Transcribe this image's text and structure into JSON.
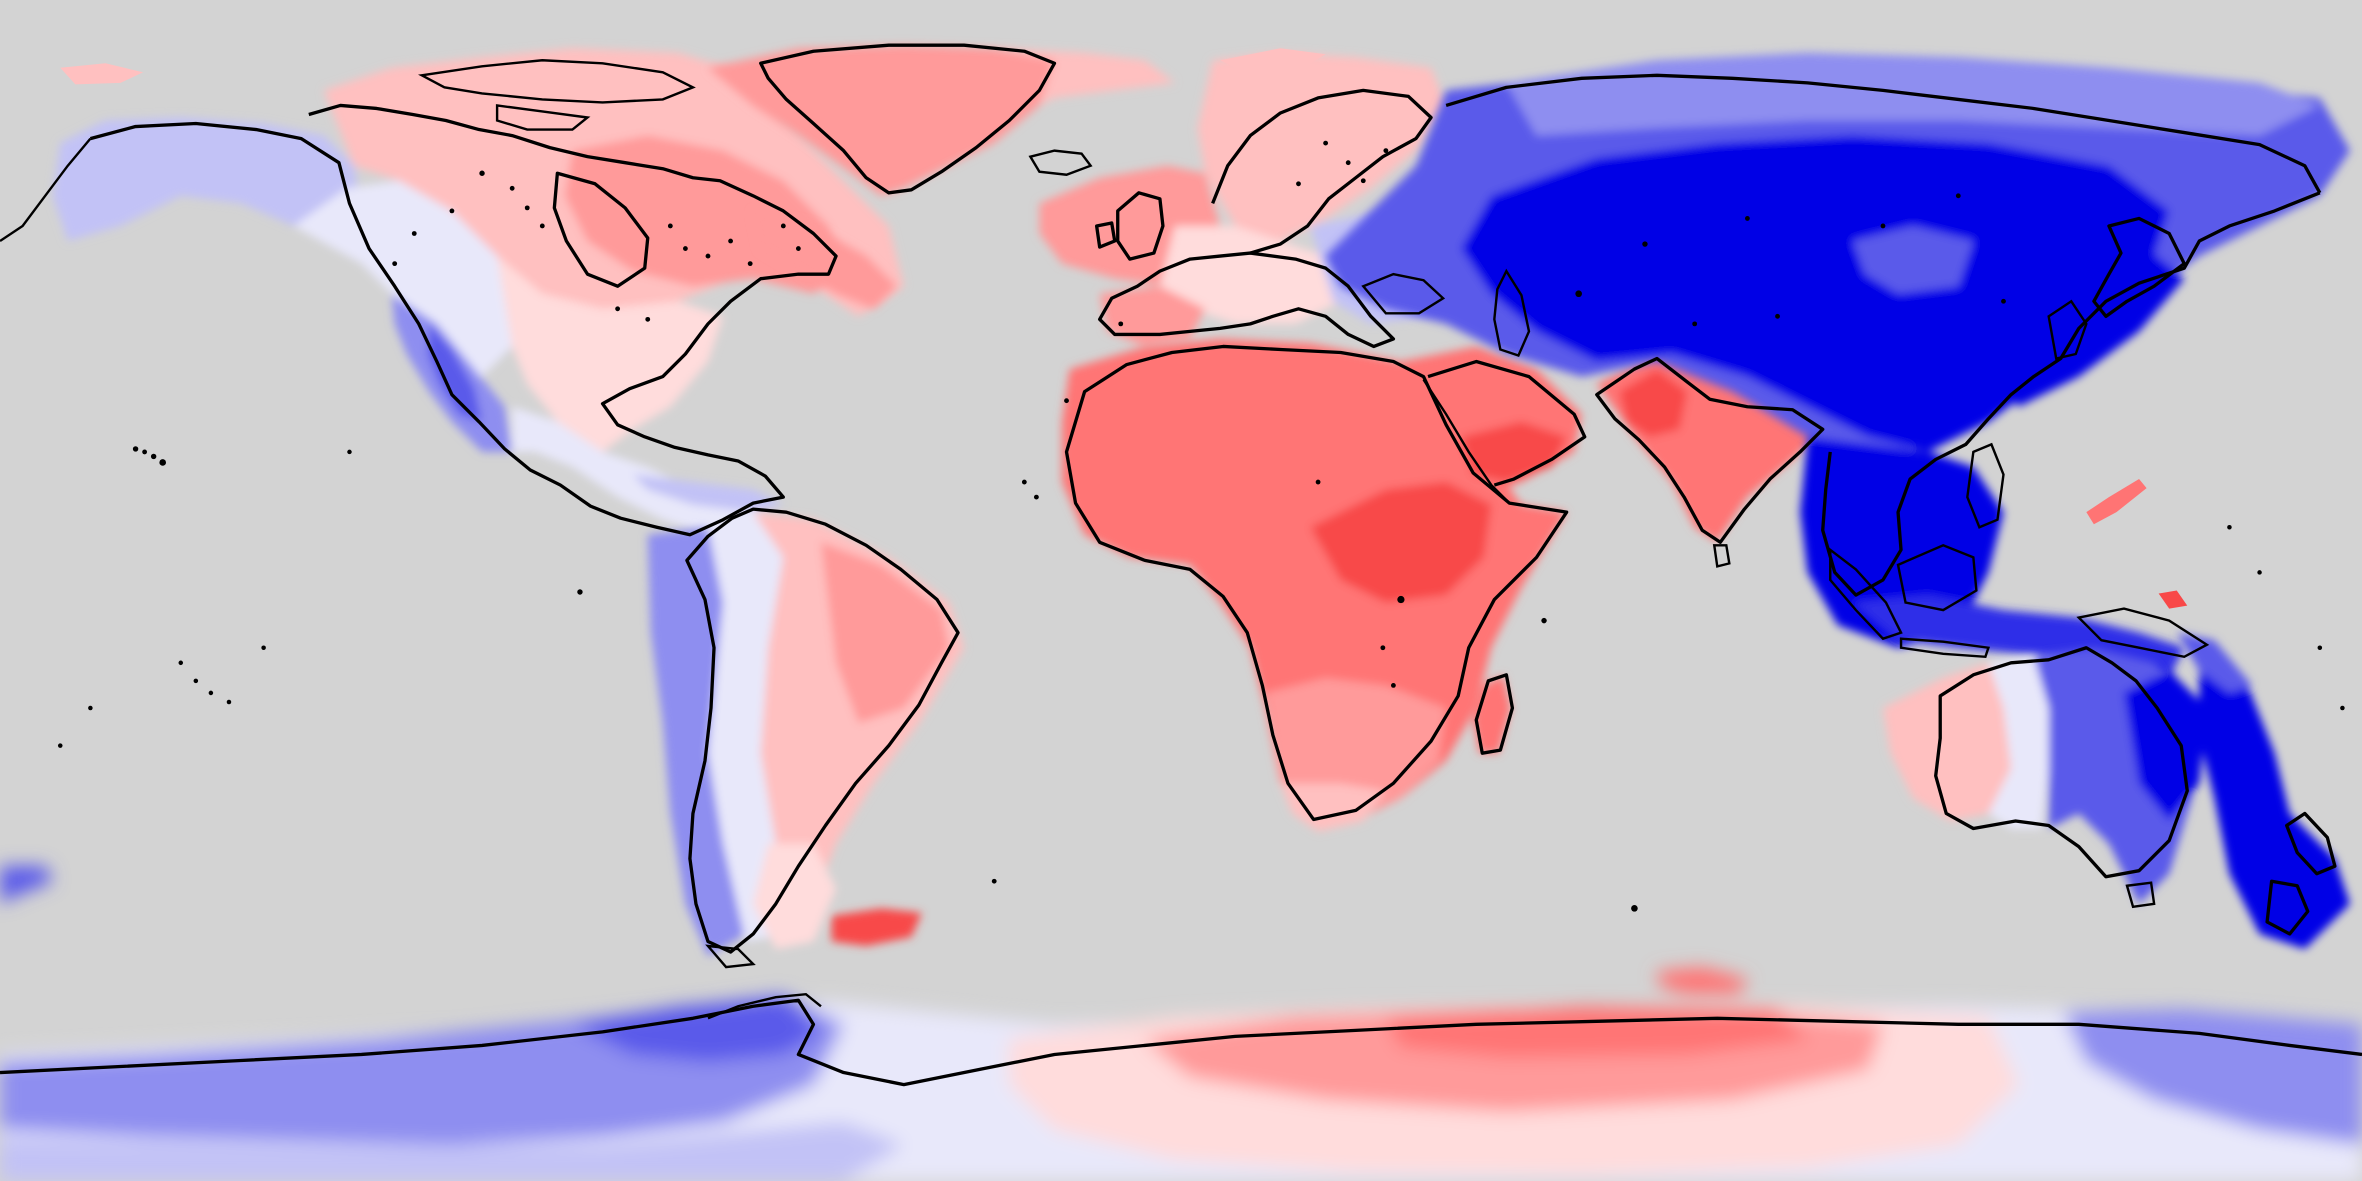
{
  "map": {
    "projection": "equirectangular",
    "background_color": "#d3d3d3",
    "coastline_color": "#000000",
    "palette": {
      "blue_5": "#0000e6",
      "blue_4": "#2e2ee8",
      "blue_3": "#5a5aea",
      "blue_2": "#8e8ef0",
      "blue_1": "#c2c2f6",
      "neutral": "#e8e8fa",
      "red_1": "#ffdcdc",
      "red_2": "#ffc0c0",
      "red_3": "#ff9a9a",
      "red_4": "#ff7474",
      "red_5": "#f84848"
    }
  }
}
